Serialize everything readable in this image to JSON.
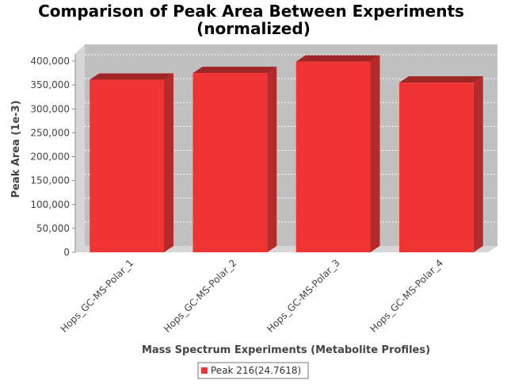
{
  "chart_data": {
    "type": "bar",
    "title_line1": "Comparison of Peak Area Between Experiments",
    "title_line2": "(normalized)",
    "xlabel": "Mass Spectrum Experiments (Metabolite Profiles)",
    "ylabel": "Peak Area (1e-3)",
    "categories": [
      "Hops_GC-MS-Polar_1",
      "Hops_GC-MS-Polar_2",
      "Hops_GC-MS-Polar_3",
      "Hops_GC-MS-Polar_4"
    ],
    "series": [
      {
        "name": "Peak 216(24.7618)",
        "values": [
          361000,
          375000,
          399000,
          355000
        ]
      }
    ],
    "yticks": [
      0,
      50000,
      100000,
      150000,
      200000,
      250000,
      300000,
      350000,
      400000
    ],
    "ytick_labels": [
      "0",
      "50,000",
      "100,000",
      "150,000",
      "200,000",
      "250,000",
      "300,000",
      "350,000",
      "400,000"
    ],
    "ylim": [
      0,
      415000
    ],
    "grid": true,
    "legend_position": "bottom-center",
    "colors": {
      "bar_front": "#f03434",
      "bar_side": "#b52a2a",
      "bar_top": "#a02626",
      "plot_back": "#c0c0c0",
      "plot_floor": "#d6d6d6",
      "gridline": "#ffffff"
    }
  }
}
